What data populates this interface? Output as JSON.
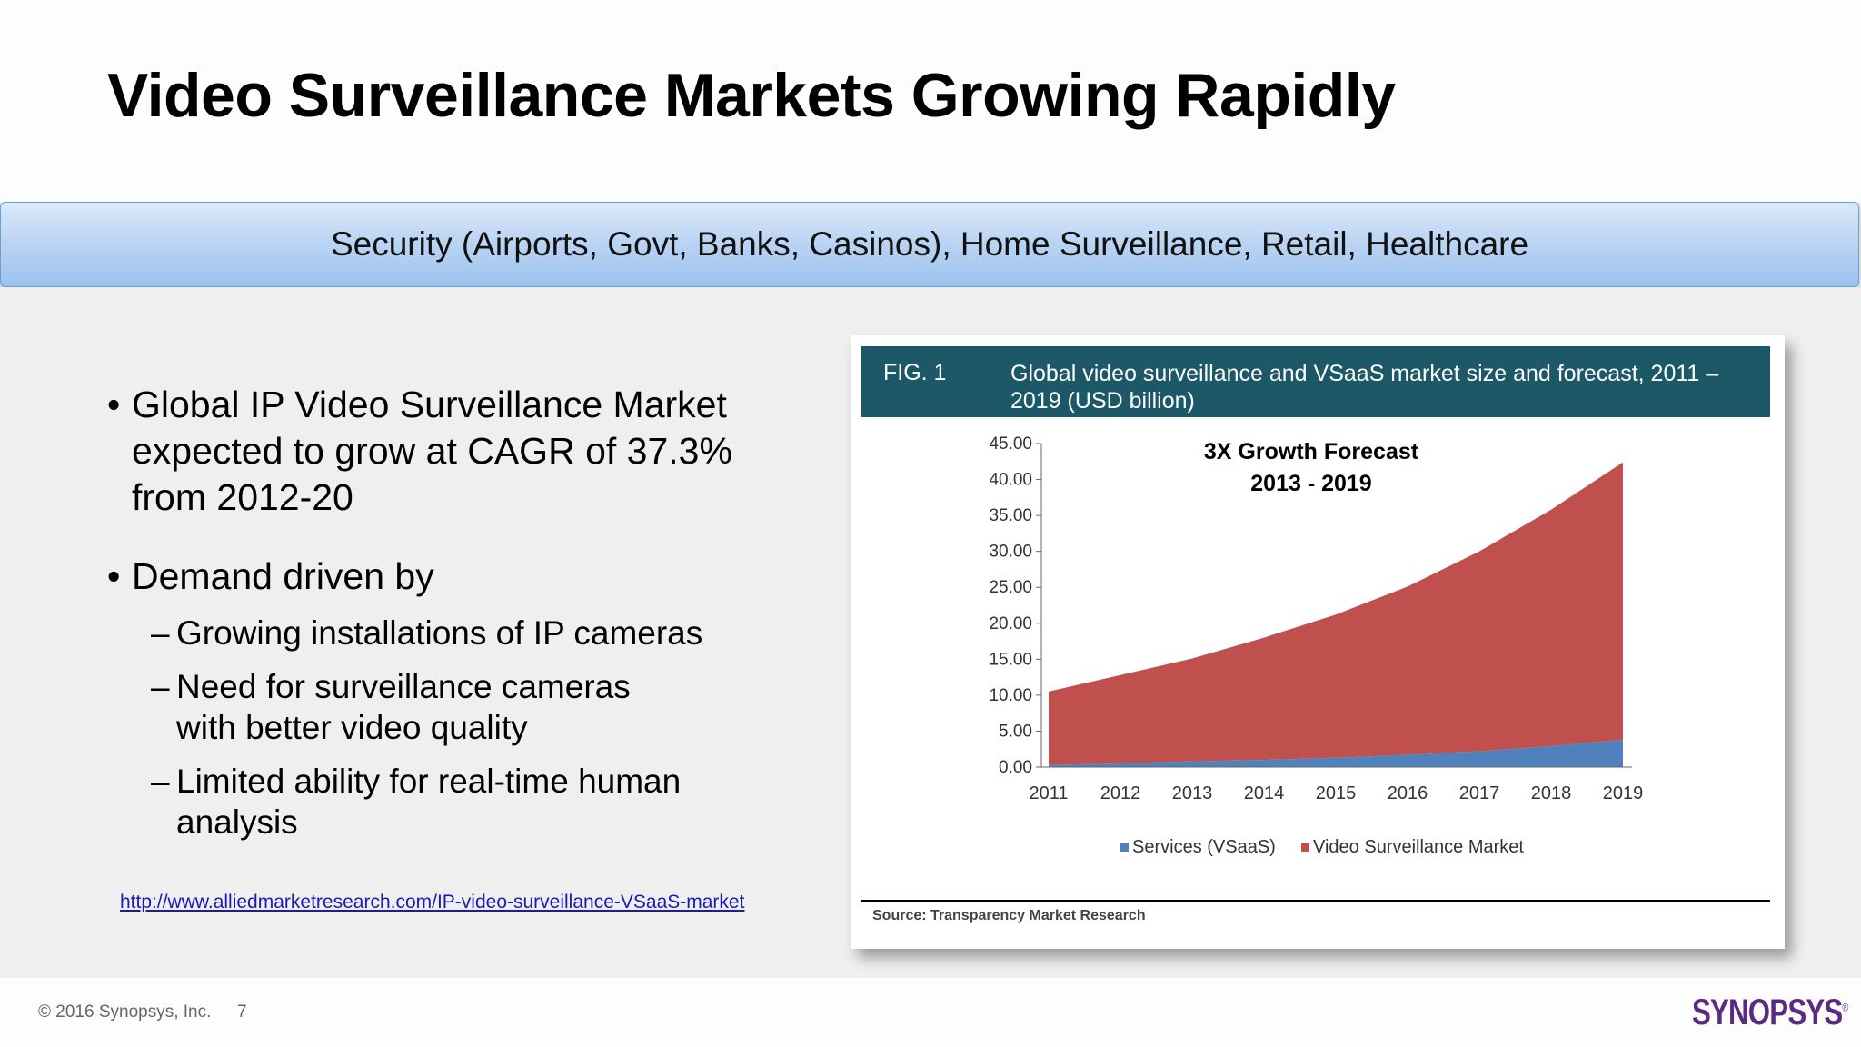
{
  "slide": {
    "title": "Video Surveillance Markets Growing Rapidly",
    "banner": "Security (Airports, Govt, Banks, Casinos), Home Surveillance, Retail, Healthcare"
  },
  "bullets": {
    "b1": "Global IP Video Surveillance Market expected to grow at CAGR of 37.3% from 2012-20",
    "b2": "Demand driven by",
    "sub": [
      "Growing installations of IP cameras",
      "Need for surveillance cameras with better video quality",
      "Limited ability for real-time human analysis"
    ],
    "bullet_char": "•",
    "dash_char": "–"
  },
  "link": "http://www.alliedmarketresearch.com/IP-video-surveillance-VSaaS-market",
  "figure": {
    "label": "FIG. 1",
    "caption": "Global video surveillance and VSaaS market size and forecast, 2011 – 2019 (USD billion)",
    "annotation_line1": "3X Growth Forecast",
    "annotation_line2": "2013 - 2019",
    "source": "Source:  Transparency Market Research"
  },
  "chart_data": {
    "type": "area",
    "stacked": true,
    "x": [
      "2011",
      "2012",
      "2013",
      "2014",
      "2015",
      "2016",
      "2017",
      "2018",
      "2019"
    ],
    "ylim": [
      0,
      45
    ],
    "yticks": [
      "0.00",
      "5.00",
      "10.00",
      "15.00",
      "20.00",
      "25.00",
      "30.00",
      "35.00",
      "40.00",
      "45.00"
    ],
    "series": [
      {
        "name": "Services (VSaaS)",
        "color": "#4f81bd",
        "values": [
          0.3,
          0.5,
          0.8,
          1.0,
          1.3,
          1.7,
          2.2,
          2.9,
          3.8
        ]
      },
      {
        "name": "Video Surveillance Market",
        "color": "#c0504d",
        "values": [
          10.2,
          12.3,
          14.3,
          17.0,
          19.9,
          23.4,
          27.8,
          32.9,
          38.6
        ]
      }
    ],
    "legend_position": "bottom",
    "grid": false
  },
  "footer": {
    "copyright": "© 2016 Synopsys, Inc.",
    "page": "7",
    "logo": "SYNOPSYS",
    "logo_mark": "®"
  }
}
